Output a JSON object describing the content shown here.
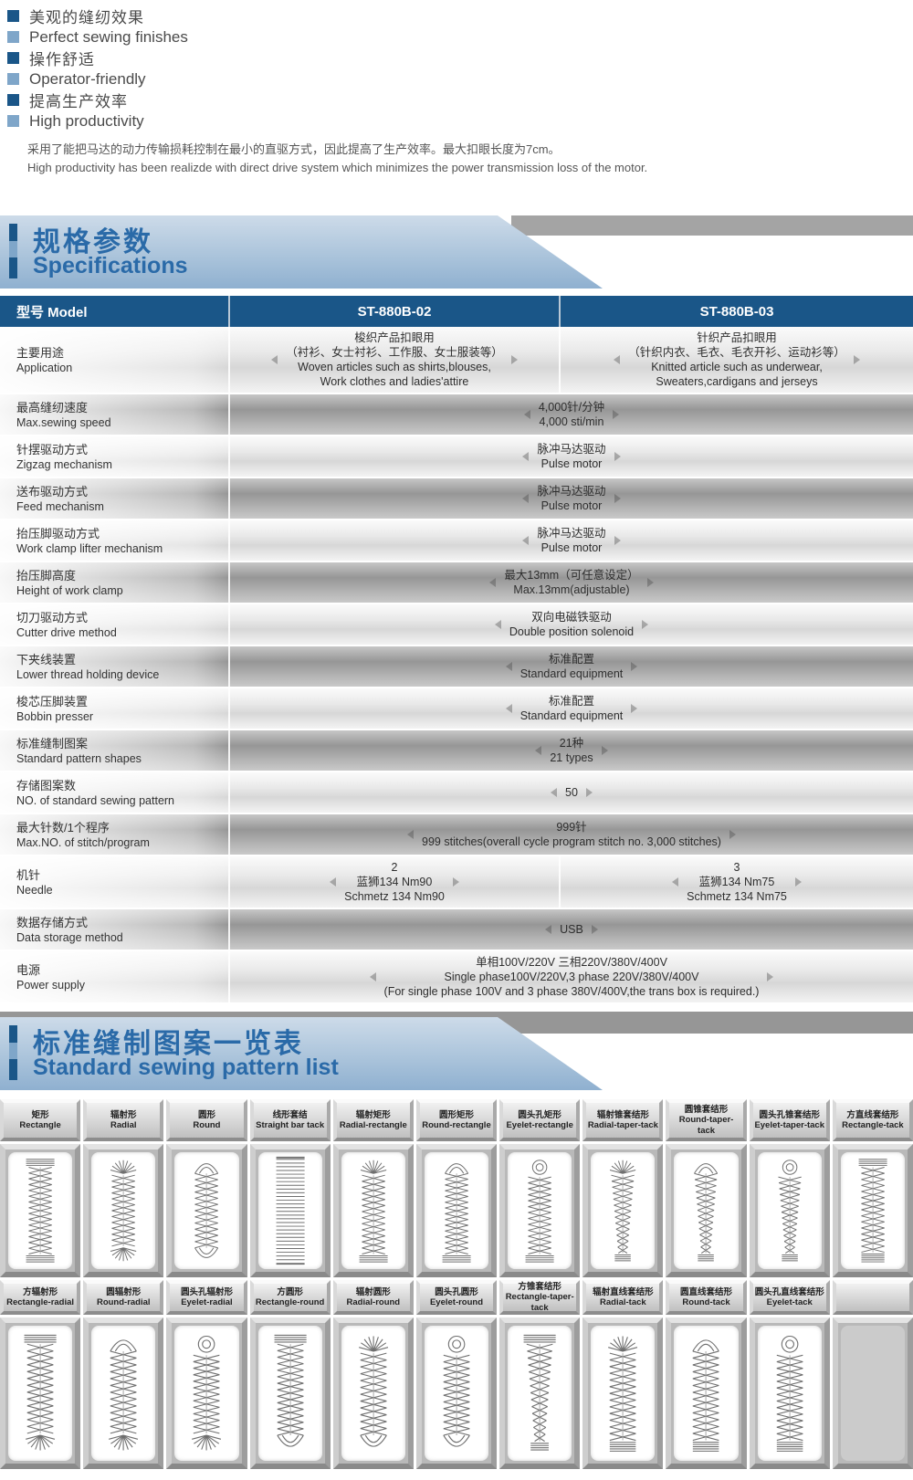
{
  "colors": {
    "header_bg": "#1a5688",
    "title_blue": "#2a6aa8",
    "light_blue": "#b7cde1",
    "bullet_dark": "#1a5688",
    "bullet_mid": "#7fa6c9"
  },
  "features": [
    {
      "cn": "美观的缝纫效果",
      "en": "Perfect sewing finishes"
    },
    {
      "cn": "操作舒适",
      "en": "Operator-friendly"
    },
    {
      "cn": "提高生产效率",
      "en": "High productivity"
    }
  ],
  "intro": {
    "cn": "采用了能把马达的动力传输损耗控制在最小的直驱方式，因此提高了生产效率。最大扣眼长度为7cm。",
    "en": "High productivity has been realizde with direct drive system which minimizes the power transmission loss of the motor."
  },
  "spec_section": {
    "title_cn": "规格参数",
    "title_en": "Specifications"
  },
  "table": {
    "header": {
      "model_label": "型号 Model",
      "col1": "ST-880B-02",
      "col2": "ST-880B-03"
    },
    "rows": [
      {
        "label_cn": "主要用途",
        "label_en": "Application",
        "span": false,
        "col1": [
          "梭织产品扣眼用",
          "（衬衫、女士衬衫、工作服、女士服装等）",
          "Woven articles such as shirts,blouses,",
          "Work clothes and ladies'attire"
        ],
        "col2": [
          "针织产品扣眼用",
          "（针织内衣、毛衣、毛衣开衫、运动衫等）",
          "Knitted article such as underwear,",
          "Sweaters,cardigans and jerseys"
        ]
      },
      {
        "label_cn": "最高缝纫速度",
        "label_en": "Max.sewing speed",
        "span": true,
        "value": [
          "4,000针/分钟",
          "4,000 sti/min"
        ]
      },
      {
        "label_cn": "针摆驱动方式",
        "label_en": "Zigzag mechanism",
        "span": true,
        "value": [
          "脉冲马达驱动",
          "Pulse motor"
        ]
      },
      {
        "label_cn": "送布驱动方式",
        "label_en": "Feed mechanism",
        "span": true,
        "value": [
          "脉冲马达驱动",
          "Pulse motor"
        ]
      },
      {
        "label_cn": "抬压脚驱动方式",
        "label_en": "Work clamp lifter mechanism",
        "span": true,
        "value": [
          "脉冲马达驱动",
          "Pulse motor"
        ]
      },
      {
        "label_cn": "抬压脚高度",
        "label_en": "Height of work clamp",
        "span": true,
        "value": [
          "最大13mm（可任意设定）",
          "Max.13mm(adjustable)"
        ]
      },
      {
        "label_cn": "切刀驱动方式",
        "label_en": "Cutter drive method",
        "span": true,
        "value": [
          "双向电磁铁驱动",
          "Double position solenoid"
        ]
      },
      {
        "label_cn": "下夹线装置",
        "label_en": "Lower thread holding device",
        "span": true,
        "value": [
          "标准配置",
          "Standard equipment"
        ]
      },
      {
        "label_cn": "梭芯压脚装置",
        "label_en": "Bobbin presser",
        "span": true,
        "value": [
          "标准配置",
          "Standard equipment"
        ]
      },
      {
        "label_cn": "标准缝制图案",
        "label_en": "Standard pattern shapes",
        "span": true,
        "value": [
          "21种",
          "21 types"
        ]
      },
      {
        "label_cn": "存储图案数",
        "label_en": "NO. of standard sewing pattern",
        "span": true,
        "value": [
          "50"
        ]
      },
      {
        "label_cn": "最大针数/1个程序",
        "label_en": "Max.NO. of stitch/program",
        "span": true,
        "value": [
          "999针",
          "999 stitches(overall cycle program stitch no. 3,000 stitches)"
        ]
      },
      {
        "label_cn": "机针",
        "label_en": "Needle",
        "span": false,
        "col1": [
          "2",
          "蓝狮134 Nm90",
          "Schmetz 134 Nm90"
        ],
        "col2": [
          "3",
          "蓝狮134 Nm75",
          "Schmetz 134 Nm75"
        ]
      },
      {
        "label_cn": "数据存储方式",
        "label_en": "Data storage method",
        "span": true,
        "value": [
          "USB"
        ]
      },
      {
        "label_cn": "电源",
        "label_en": "Power supply",
        "span": true,
        "value": [
          "单相100V/220V 三相220V/380V/400V",
          "Single phase100V/220V,3 phase 220V/380V/400V",
          "(For single phase 100V and 3 phase 380V/400V,the trans box is required.)"
        ]
      }
    ]
  },
  "pattern_section": {
    "title_cn": "标准缝制图案一览表",
    "title_en": "Standard sewing pattern list"
  },
  "patterns": {
    "row1": [
      {
        "cn": "矩形",
        "en": "Rectangle",
        "shape": "bar_bar"
      },
      {
        "cn": "辐射形",
        "en": "Radial",
        "shape": "fan_fan"
      },
      {
        "cn": "圆形",
        "en": "Round",
        "shape": "arch_arch"
      },
      {
        "cn": "线形套结",
        "en": "Straight bar tack",
        "shape": "ladder"
      },
      {
        "cn": "辐射矩形",
        "en": "Radial-rectangle",
        "shape": "fan_bar"
      },
      {
        "cn": "圆形矩形",
        "en": "Round-rectangle",
        "shape": "arch_bar"
      },
      {
        "cn": "圆头孔矩形",
        "en": "Eyelet-rectangle",
        "shape": "eyelet_bar"
      },
      {
        "cn": "辐射锥套结形",
        "en": "Radial-taper-tack",
        "shape": "fan_taper"
      },
      {
        "cn": "圆锥套结形",
        "en": "Round-taper-tack",
        "shape": "arch_taper"
      },
      {
        "cn": "圆头孔锥套结形",
        "en": "Eyelet-taper-tack",
        "shape": "eyelet_taper"
      },
      {
        "cn": "方直线套结形",
        "en": "Rectangle-tack",
        "shape": "bar_tack"
      }
    ],
    "row2": [
      {
        "cn": "方辐射形",
        "en": "Rectangle-radial",
        "shape": "bar_fan"
      },
      {
        "cn": "圆辐射形",
        "en": "Round-radial",
        "shape": "arch_fan"
      },
      {
        "cn": "圆头孔辐射形",
        "en": "Eyelet-radial",
        "shape": "eyelet_fan"
      },
      {
        "cn": "方圆形",
        "en": "Rectangle-round",
        "shape": "bar_arch"
      },
      {
        "cn": "辐射圆形",
        "en": "Radial-round",
        "shape": "fan_arch"
      },
      {
        "cn": "圆头孔圆形",
        "en": "Eyelet-round",
        "shape": "eyelet_arch"
      },
      {
        "cn": "方锥套结形",
        "en": "Rectangle-taper-tack",
        "shape": "bar_taper"
      },
      {
        "cn": "辐射直线套结形",
        "en": "Radial-tack",
        "shape": "fan_tack"
      },
      {
        "cn": "圆直线套结形",
        "en": "Round-tack",
        "shape": "arch_tack"
      },
      {
        "cn": "圆头孔直线套结形",
        "en": "Eyelet-tack",
        "shape": "eyelet_tack"
      },
      null
    ]
  }
}
